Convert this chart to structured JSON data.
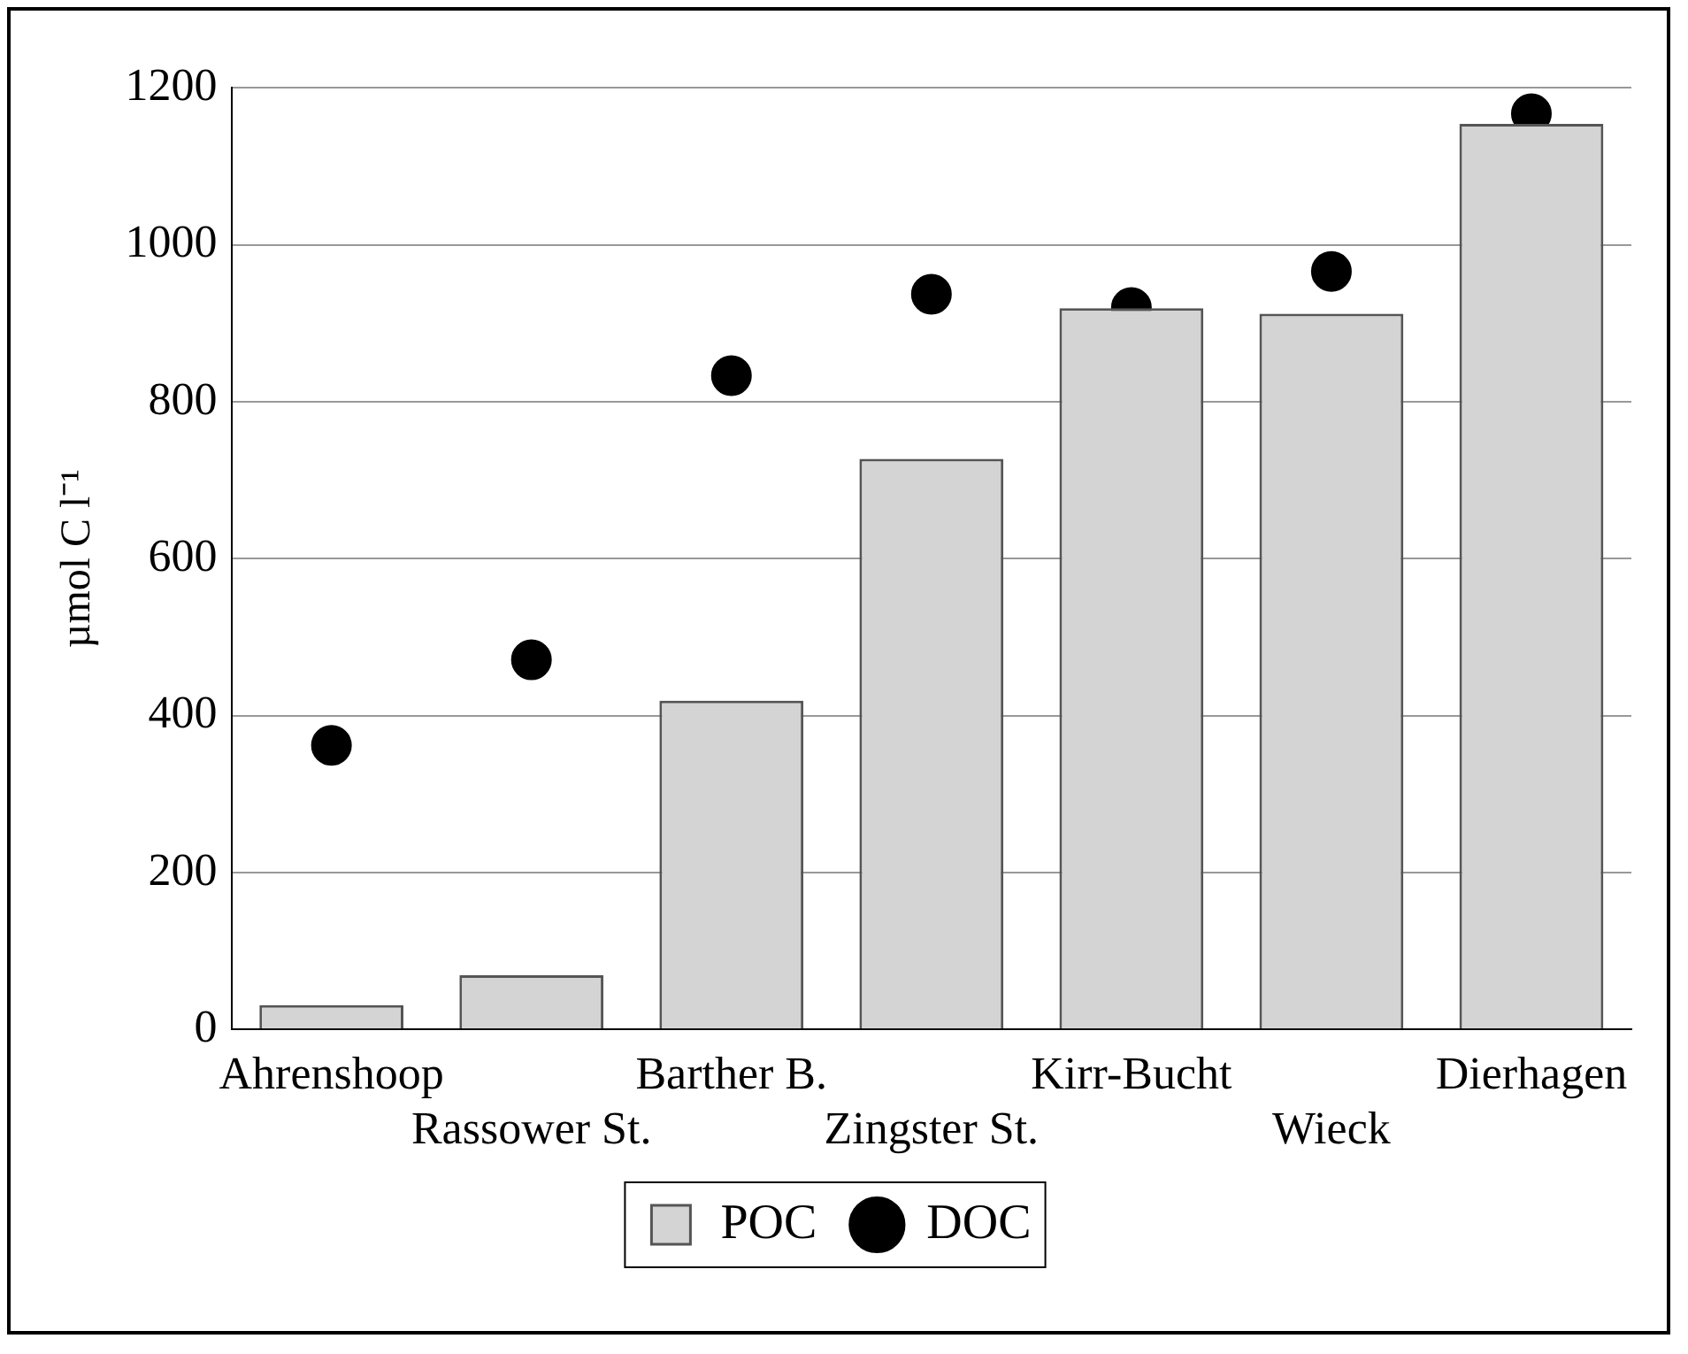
{
  "chart_data": {
    "type": "bar",
    "ylabel": "µmol C l⁻¹",
    "categories": [
      "Ahrenshoop",
      "Rassower St.",
      "Barther B.",
      "Zingster St.",
      "Kirr-Bucht",
      "Wieck",
      "Dierhagen"
    ],
    "series": [
      {
        "name": "DOC",
        "type": "scatter",
        "color": "#000000",
        "marker": "circle",
        "values": [
          362,
          471,
          833,
          937,
          920,
          966,
          1167
        ]
      },
      {
        "name": "POC",
        "color": "#d4d4d4",
        "values": [
          31,
          69,
          419,
          727,
          919,
          912,
          1154
        ]
      }
    ],
    "ylim": [
      0,
      1200
    ],
    "yticks": [
      0,
      200,
      400,
      600,
      800,
      1000,
      1200
    ],
    "grid": "y",
    "legend": "bottom"
  }
}
